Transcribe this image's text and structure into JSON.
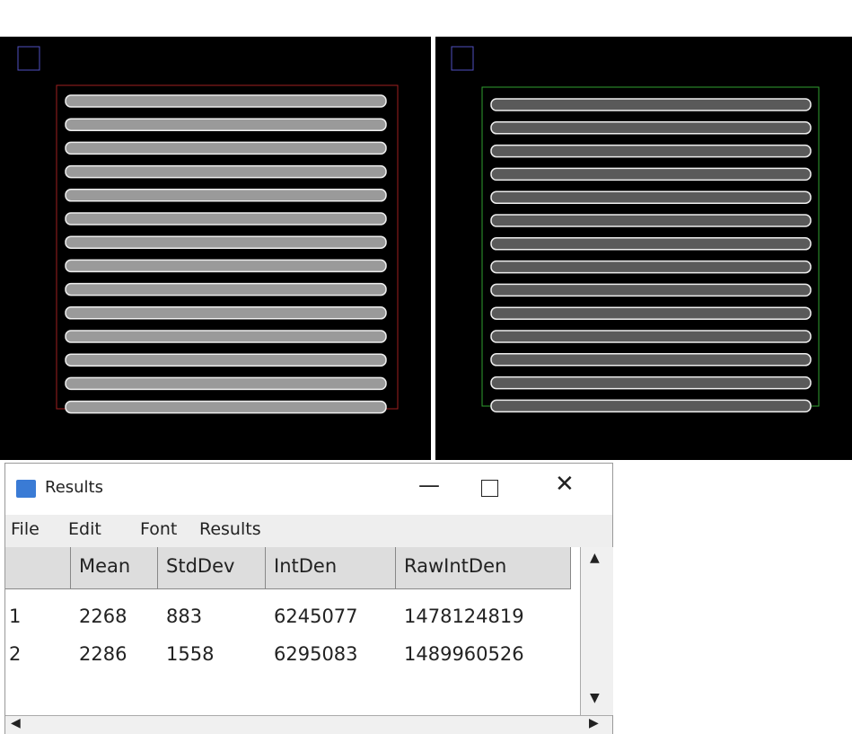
{
  "results_window": {
    "title": "Results",
    "menu": [
      "File",
      "Edit",
      "Font",
      "Results"
    ],
    "table": {
      "columns": [
        "Mean",
        "StdDev",
        "IntDen",
        "RawIntDen"
      ],
      "rows": [
        [
          1,
          2268,
          883,
          6245077,
          1478124819
        ],
        [
          2,
          2286,
          1558,
          6295083,
          1489960526
        ]
      ]
    }
  }
}
